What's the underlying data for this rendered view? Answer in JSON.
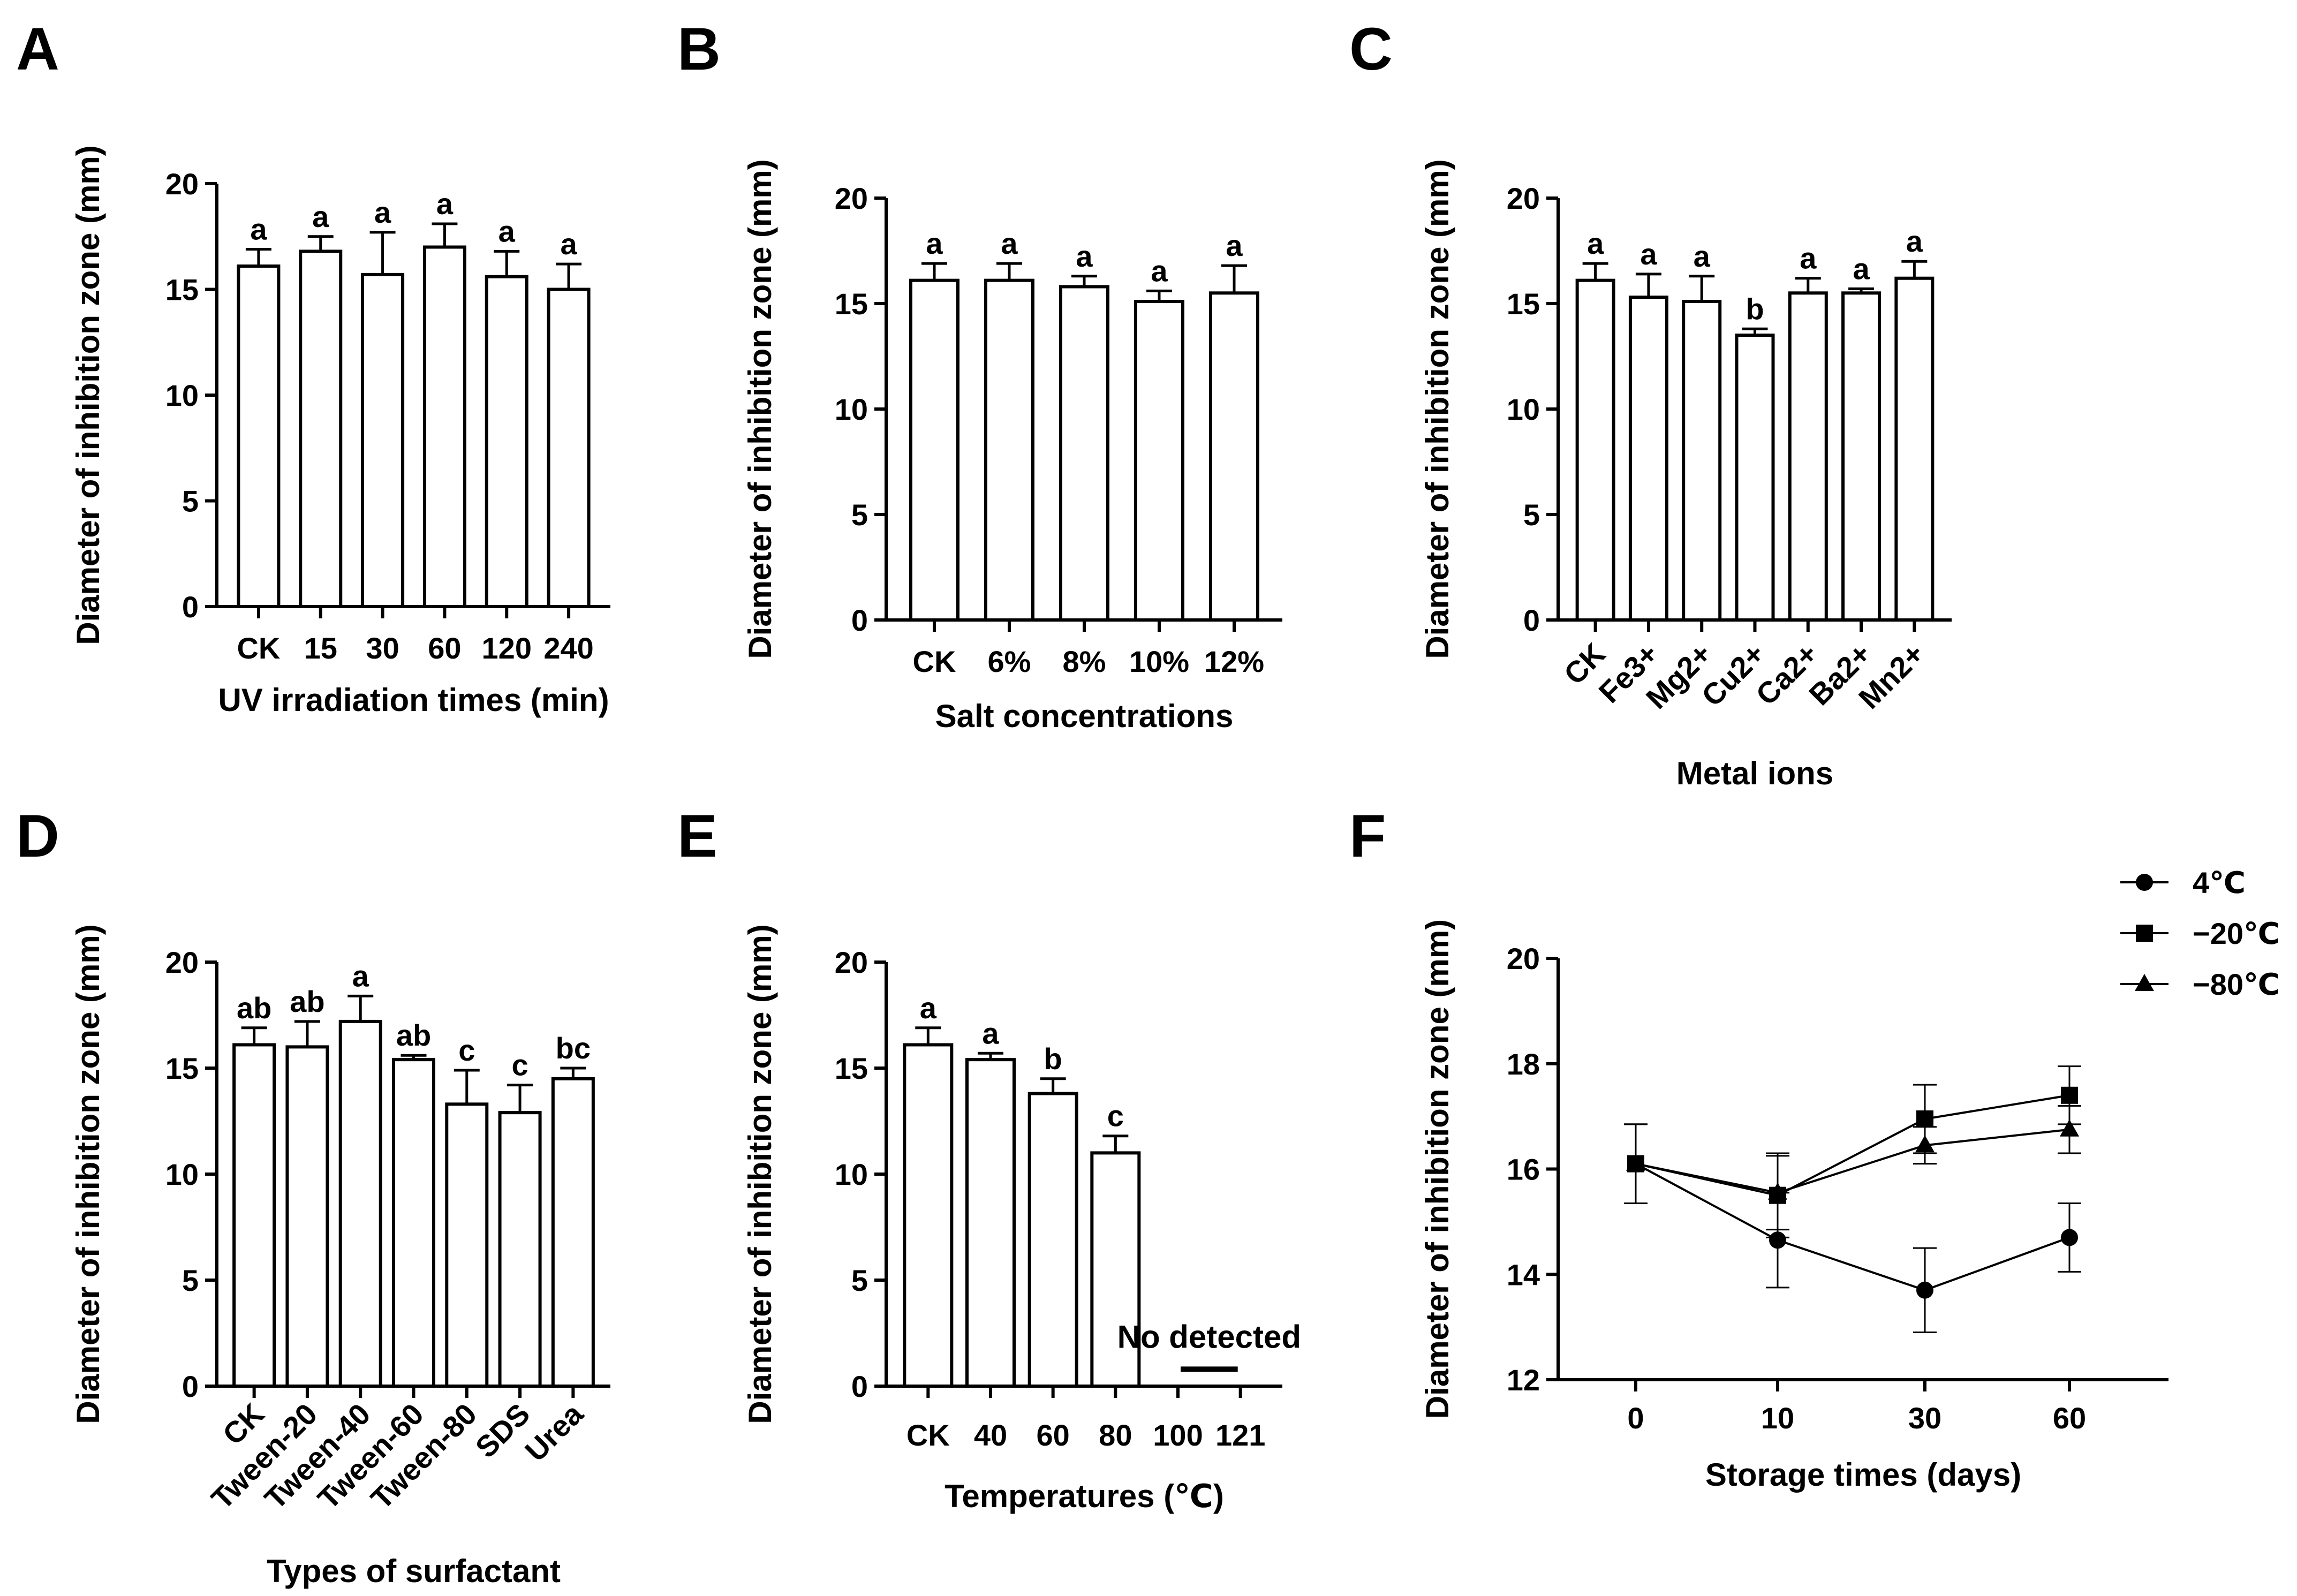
{
  "chart_data": [
    {
      "id": "A",
      "type": "bar",
      "panel_letter": "A",
      "xlabel": "UV irradiation times (min)",
      "ylabel": "Diameter of inhibition zone (mm)",
      "ylim": [
        0,
        20
      ],
      "yticks": [
        "0",
        "5",
        "10",
        "15",
        "20"
      ],
      "categories": [
        "CK",
        "15",
        "30",
        "60",
        "120",
        "240"
      ],
      "values": [
        16.1,
        16.8,
        15.7,
        17.0,
        15.6,
        15.0
      ],
      "errors": [
        0.8,
        0.7,
        2.0,
        1.1,
        1.2,
        1.2
      ],
      "letters": [
        "a",
        "a",
        "a",
        "a",
        "a",
        "a"
      ],
      "rotate_ticks": false
    },
    {
      "id": "B",
      "type": "bar",
      "panel_letter": "B",
      "xlabel": "Salt concentrations",
      "ylabel": "Diameter of inhibition zone (mm)",
      "ylim": [
        0,
        20
      ],
      "yticks": [
        "0",
        "5",
        "10",
        "15",
        "20"
      ],
      "categories": [
        "CK",
        "6%",
        "8%",
        "10%",
        "12%"
      ],
      "values": [
        16.1,
        16.1,
        15.8,
        15.1,
        15.5
      ],
      "errors": [
        0.8,
        0.8,
        0.5,
        0.5,
        1.3
      ],
      "letters": [
        "a",
        "a",
        "a",
        "a",
        "a"
      ],
      "rotate_ticks": false
    },
    {
      "id": "C",
      "type": "bar",
      "panel_letter": "C",
      "xlabel": "Metal ions",
      "ylabel": "Diameter of inhibition zone (mm)",
      "ylim": [
        0,
        20
      ],
      "yticks": [
        "0",
        "5",
        "10",
        "15",
        "20"
      ],
      "categories": [
        "CK",
        "Fe3+",
        "Mg2+",
        "Cu2+",
        "Ca2+",
        "Ba2+",
        "Mn2+"
      ],
      "values": [
        16.1,
        15.3,
        15.1,
        13.5,
        15.5,
        15.5,
        16.2
      ],
      "errors": [
        0.8,
        1.1,
        1.2,
        0.3,
        0.7,
        0.2,
        0.8
      ],
      "letters": [
        "a",
        "a",
        "a",
        "b",
        "a",
        "a",
        "a"
      ],
      "rotate_ticks": true
    },
    {
      "id": "D",
      "type": "bar",
      "panel_letter": "D",
      "xlabel": "Types of surfactant",
      "ylabel": "Diameter of inhibition zone (mm)",
      "ylim": [
        0,
        20
      ],
      "yticks": [
        "0",
        "5",
        "10",
        "15",
        "20"
      ],
      "categories": [
        "CK",
        "Tween-20",
        "Tween-40",
        "Tween-60",
        "Tween-80",
        "SDS",
        "Urea"
      ],
      "values": [
        16.1,
        16.0,
        17.2,
        15.4,
        13.3,
        12.9,
        14.5
      ],
      "errors": [
        0.8,
        1.2,
        1.2,
        0.2,
        1.6,
        1.3,
        0.5
      ],
      "letters": [
        "ab",
        "ab",
        "a",
        "ab",
        "c",
        "c",
        "bc"
      ],
      "rotate_ticks": true
    },
    {
      "id": "E",
      "type": "bar",
      "panel_letter": "E",
      "xlabel": "Temperatures (℃)",
      "ylabel": "Diameter of inhibition zone (mm)",
      "ylim": [
        0,
        20
      ],
      "yticks": [
        "0",
        "5",
        "10",
        "15",
        "20"
      ],
      "categories": [
        "CK",
        "40",
        "60",
        "80",
        "100",
        "121"
      ],
      "values": [
        16.1,
        15.4,
        13.8,
        11.0,
        null,
        null
      ],
      "errors": [
        0.8,
        0.3,
        0.7,
        0.8,
        null,
        null
      ],
      "letters": [
        "a",
        "a",
        "b",
        "c",
        "",
        ""
      ],
      "rotate_ticks": false,
      "annotation": "No detected"
    },
    {
      "id": "F",
      "type": "line",
      "panel_letter": "F",
      "xlabel": "Storage times (days)",
      "ylabel": "Diameter of inhibition zone (mm)",
      "ylim": [
        12,
        20
      ],
      "yticks": [
        "12",
        "14",
        "16",
        "18",
        "20"
      ],
      "categories": [
        "0",
        "10",
        "30",
        "60"
      ],
      "series": [
        {
          "name": "4℃",
          "marker": "circle",
          "values": [
            16.1,
            14.65,
            13.7,
            14.7
          ],
          "errors": [
            0.75,
            0.9,
            0.8,
            0.65
          ]
        },
        {
          "name": "−20℃",
          "marker": "square",
          "values": [
            16.1,
            15.5,
            16.95,
            17.4
          ],
          "errors": [
            0.75,
            0.8,
            0.65,
            0.55
          ]
        },
        {
          "name": "−80℃",
          "marker": "triangle",
          "values": [
            16.1,
            15.55,
            16.45,
            16.75
          ],
          "errors": [
            0.75,
            0.7,
            0.35,
            0.45
          ]
        }
      ],
      "legend": "top-right"
    }
  ]
}
